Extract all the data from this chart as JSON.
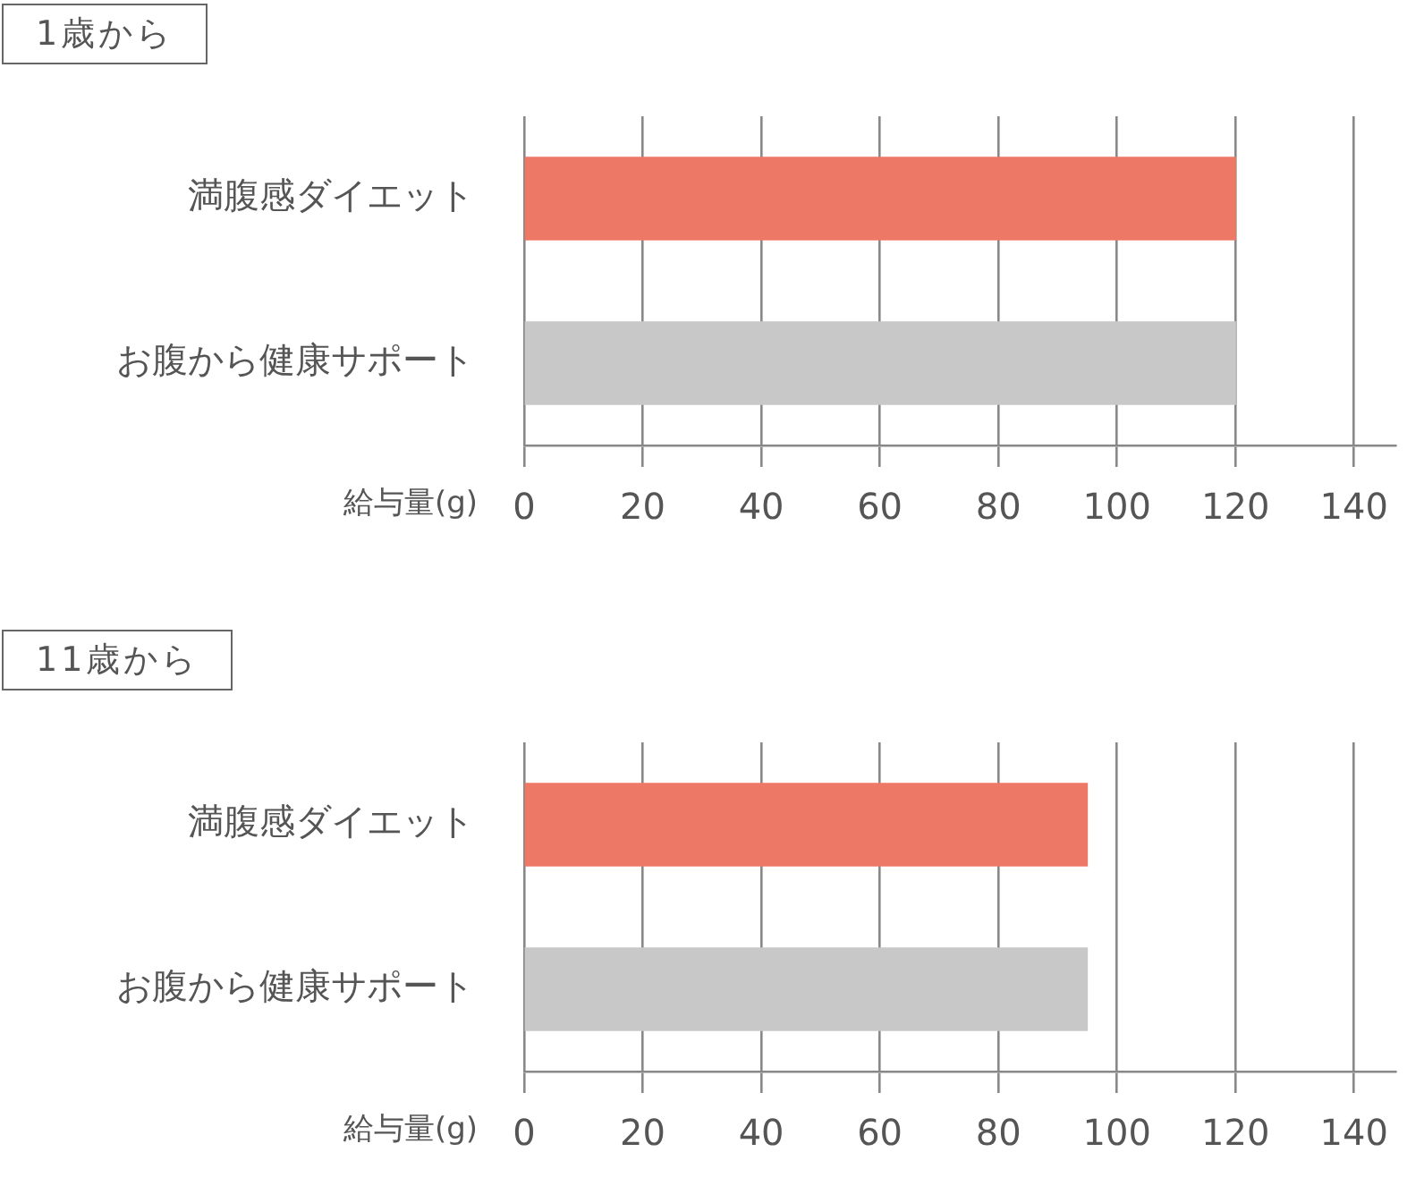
{
  "chart_data": [
    {
      "type": "bar",
      "orientation": "horizontal",
      "title": "1歳から",
      "xlabel": "給与量(g)",
      "categories": [
        "満腹感ダイエット",
        "お腹から健康サポート"
      ],
      "values": [
        120,
        120
      ],
      "colors": [
        "#ee7866",
        "#c8c8c8"
      ],
      "xlim": [
        0,
        147
      ],
      "xticks": [
        0,
        20,
        40,
        60,
        80,
        100,
        120,
        140
      ],
      "grid": "x"
    },
    {
      "type": "bar",
      "orientation": "horizontal",
      "title": "11歳から",
      "xlabel": "給与量(g)",
      "categories": [
        "満腹感ダイエット",
        "お腹から健康サポート"
      ],
      "values": [
        95,
        95
      ],
      "colors": [
        "#ee7866",
        "#c8c8c8"
      ],
      "xlim": [
        0,
        147
      ],
      "xticks": [
        0,
        20,
        40,
        60,
        80,
        100,
        120,
        140
      ],
      "grid": "x"
    }
  ]
}
